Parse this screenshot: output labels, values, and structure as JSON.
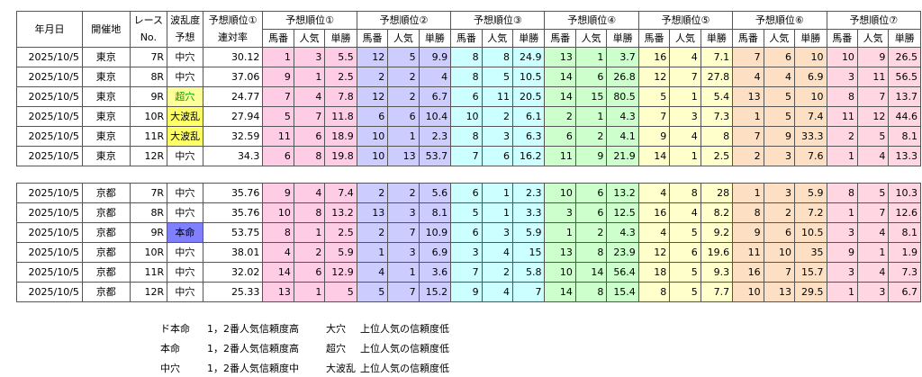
{
  "header": {
    "date": "年月日",
    "venue": "開催地",
    "race": [
      "レース",
      "No."
    ],
    "level": [
      "波乱度",
      "予想"
    ],
    "rate": [
      "予想順位①",
      "連対率"
    ],
    "groups": [
      "予想順位①",
      "予想順位②",
      "予想順位③",
      "予想順位④",
      "予想順位⑤",
      "予想順位⑥",
      "予想順位⑦"
    ],
    "subcols": [
      "馬番",
      "人気",
      "単勝"
    ]
  },
  "group_colors": [
    "#ffcce6",
    "#ccccff",
    "#ccffff",
    "#ccffcc",
    "#ffffcc",
    "#fde0c4",
    "#ffd6e2"
  ],
  "sections": [
    {
      "rows": [
        {
          "date": "2025/10/5",
          "venue": "東京",
          "race": "7R",
          "level": "中穴",
          "rate": 30.12,
          "picks": [
            [
              1,
              3,
              5.5
            ],
            [
              12,
              5,
              9.9
            ],
            [
              8,
              8,
              24.9
            ],
            [
              13,
              1,
              3.7
            ],
            [
              16,
              4,
              7.1
            ],
            [
              7,
              6,
              10
            ],
            [
              10,
              9,
              26.5
            ]
          ]
        },
        {
          "date": "2025/10/5",
          "venue": "東京",
          "race": "8R",
          "level": "中穴",
          "rate": 37.06,
          "picks": [
            [
              9,
              1,
              2.5
            ],
            [
              2,
              2,
              4
            ],
            [
              8,
              5,
              10.5
            ],
            [
              14,
              6,
              26.8
            ],
            [
              12,
              7,
              27.8
            ],
            [
              4,
              4,
              6.9
            ],
            [
              3,
              11,
              56.5
            ]
          ]
        },
        {
          "date": "2025/10/5",
          "venue": "東京",
          "race": "9R",
          "level": "超穴",
          "level_bg": "#ffff99",
          "level_color": "#00a000",
          "rate": 24.77,
          "picks": [
            [
              7,
              4,
              7.8
            ],
            [
              12,
              2,
              6.7
            ],
            [
              6,
              11,
              20.5
            ],
            [
              14,
              15,
              80.5
            ],
            [
              5,
              1,
              5.4
            ],
            [
              13,
              5,
              10
            ],
            [
              8,
              7,
              13.7
            ]
          ]
        },
        {
          "date": "2025/10/5",
          "venue": "東京",
          "race": "10R",
          "level": "大波乱",
          "level_bg": "#ffff66",
          "rate": 27.94,
          "picks": [
            [
              5,
              7,
              11.8
            ],
            [
              6,
              6,
              10.4
            ],
            [
              10,
              2,
              6.1
            ],
            [
              2,
              1,
              4.3
            ],
            [
              7,
              3,
              7.3
            ],
            [
              1,
              5,
              7.4
            ],
            [
              11,
              12,
              44.6
            ]
          ]
        },
        {
          "date": "2025/10/5",
          "venue": "東京",
          "race": "11R",
          "level": "大波乱",
          "level_bg": "#ffff66",
          "rate": 32.59,
          "picks": [
            [
              11,
              6,
              18.9
            ],
            [
              10,
              1,
              2.3
            ],
            [
              8,
              3,
              6.3
            ],
            [
              6,
              2,
              4.1
            ],
            [
              9,
              4,
              8
            ],
            [
              7,
              9,
              33.3
            ],
            [
              2,
              5,
              8.1
            ]
          ]
        },
        {
          "date": "2025/10/5",
          "venue": "東京",
          "race": "12R",
          "level": "中穴",
          "rate": 34.3,
          "picks": [
            [
              6,
              8,
              19.8
            ],
            [
              10,
              13,
              53.7
            ],
            [
              7,
              6,
              16.2
            ],
            [
              11,
              9,
              21.9
            ],
            [
              14,
              1,
              2.5
            ],
            [
              2,
              3,
              7.6
            ],
            [
              1,
              4,
              13.3
            ]
          ]
        }
      ]
    },
    {
      "rows": [
        {
          "date": "2025/10/5",
          "venue": "京都",
          "race": "7R",
          "level": "中穴",
          "rate": 35.76,
          "picks": [
            [
              9,
              4,
              7.4
            ],
            [
              2,
              2,
              5.6
            ],
            [
              6,
              1,
              2.3
            ],
            [
              10,
              6,
              13.2
            ],
            [
              4,
              8,
              28
            ],
            [
              1,
              3,
              5.9
            ],
            [
              8,
              5,
              10.3
            ]
          ]
        },
        {
          "date": "2025/10/5",
          "venue": "京都",
          "race": "8R",
          "level": "中穴",
          "rate": 35.76,
          "picks": [
            [
              10,
              8,
              13.2
            ],
            [
              13,
              3,
              8.1
            ],
            [
              5,
              1,
              3.3
            ],
            [
              3,
              6,
              12.5
            ],
            [
              16,
              4,
              8.2
            ],
            [
              8,
              2,
              7.2
            ],
            [
              1,
              7,
              12.6
            ]
          ]
        },
        {
          "date": "2025/10/5",
          "venue": "京都",
          "race": "9R",
          "level": "本命",
          "level_bg": "#8080ff",
          "rate": 53.75,
          "picks": [
            [
              8,
              1,
              2.5
            ],
            [
              2,
              7,
              10.9
            ],
            [
              6,
              3,
              5.9
            ],
            [
              1,
              2,
              4.3
            ],
            [
              4,
              5,
              9.2
            ],
            [
              9,
              6,
              10.5
            ],
            [
              3,
              4,
              8.1
            ]
          ]
        },
        {
          "date": "2025/10/5",
          "venue": "京都",
          "race": "10R",
          "level": "中穴",
          "rate": 38.01,
          "picks": [
            [
              4,
              2,
              5.9
            ],
            [
              1,
              3,
              6.9
            ],
            [
              3,
              4,
              15
            ],
            [
              13,
              8,
              23.9
            ],
            [
              12,
              6,
              19.6
            ],
            [
              11,
              10,
              35
            ],
            [
              9,
              1,
              1.9
            ]
          ]
        },
        {
          "date": "2025/10/5",
          "venue": "京都",
          "race": "11R",
          "level": "中穴",
          "rate": 32.02,
          "picks": [
            [
              14,
              6,
              12.9
            ],
            [
              4,
              1,
              3.6
            ],
            [
              7,
              2,
              5.8
            ],
            [
              10,
              14,
              56.4
            ],
            [
              18,
              5,
              9.3
            ],
            [
              16,
              7,
              15.7
            ],
            [
              3,
              4,
              7.3
            ]
          ]
        },
        {
          "date": "2025/10/5",
          "venue": "京都",
          "race": "12R",
          "level": "中穴",
          "rate": 25.33,
          "picks": [
            [
              13,
              1,
              5
            ],
            [
              5,
              7,
              15.2
            ],
            [
              9,
              4,
              7
            ],
            [
              14,
              8,
              15.4
            ],
            [
              8,
              5,
              7.7
            ],
            [
              10,
              13,
              29.5
            ],
            [
              1,
              3,
              6.7
            ]
          ]
        }
      ]
    }
  ],
  "notes": [
    [
      "ド本命",
      "1，2番人気信頼度高",
      "大穴",
      "上位人気の信頼度低"
    ],
    [
      "本命",
      "1，2番人気信頼度高",
      "超穴",
      "上位人気の信頼度低"
    ],
    [
      "中穴",
      "1，2番人気信頼度中",
      "大波乱",
      "上位人気の信頼度低"
    ]
  ]
}
